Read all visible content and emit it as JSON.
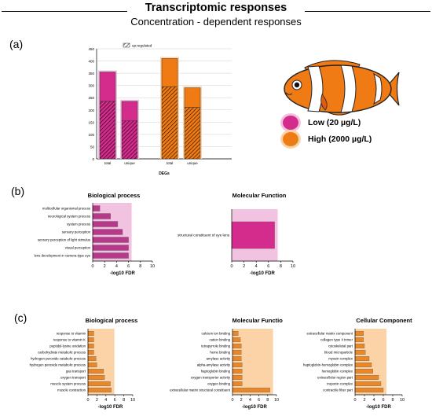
{
  "header": {
    "title": "Transcriptomic responses",
    "subtitle": "Concentration - dependent responses"
  },
  "panels": {
    "a": "(a)",
    "b": "(b)",
    "c": "(c)"
  },
  "legend": {
    "low": {
      "label": "Low (20 µg/L)",
      "color": "#d42c8c"
    },
    "high": {
      "label": "High (2000 µg/L)",
      "color": "#f07a14"
    }
  },
  "colors": {
    "pink": "#d42c8c",
    "pink_glow": "#f2c3e0",
    "orange": "#f07a14",
    "orange_glow": "#fbd3a6",
    "purple_bar": "#b53a8a",
    "orange_bar": "#e8882a"
  },
  "chart_data": [
    {
      "id": "degs",
      "type": "bar",
      "xlabel": "DEGs",
      "ylabel": "",
      "ylim": [
        0,
        450
      ],
      "yticks": [
        0,
        50,
        100,
        150,
        200,
        250,
        300,
        350,
        400,
        450
      ],
      "legend_entry": "up-regulated",
      "groups": [
        {
          "concentration": "low",
          "categories": [
            "total",
            "unique"
          ],
          "total": [
            355,
            235
          ],
          "up_regulated": [
            235,
            155
          ]
        },
        {
          "concentration": "high",
          "categories": [
            "total",
            "unique"
          ],
          "total": [
            410,
            290
          ],
          "up_regulated": [
            295,
            210
          ]
        }
      ]
    },
    {
      "id": "b-bp",
      "type": "bar",
      "orientation": "horizontal",
      "title": "Biological process",
      "xlabel": "-log10 FDR",
      "xlim": [
        0,
        10
      ],
      "xticks": [
        0,
        2,
        4,
        6,
        8,
        10
      ],
      "categories": [
        "multicellular organismal process",
        "neurological system process",
        "system process",
        "sensory perception",
        "sensory perception of light stimulus",
        "visual perception",
        "lens development in camera-type eye"
      ],
      "values": [
        1.2,
        3.0,
        4.2,
        5.0,
        6.0,
        6.0,
        6.0
      ]
    },
    {
      "id": "b-mf",
      "type": "bar",
      "orientation": "horizontal",
      "title": "Molecular Function",
      "xlabel": "-log10 FDR",
      "xlim": [
        0,
        10
      ],
      "xticks": [
        0,
        2,
        4,
        6,
        8,
        10
      ],
      "categories": [
        "structural constituent of eye lens"
      ],
      "values": [
        7.0
      ]
    },
    {
      "id": "c-bp",
      "type": "bar",
      "orientation": "horizontal",
      "title": "Biological process",
      "xlabel": "-log10 FDR",
      "xlim": [
        0,
        10
      ],
      "xticks": [
        0,
        2,
        4,
        6,
        8,
        10
      ],
      "categories": [
        "response to vitamin",
        "response to vitamin K",
        "peptidyl-lysine oxidation",
        "carbohydrate metabolic process",
        "hydrogen peroxide catabolic process",
        "hydrogen peroxide metabolic process",
        "gas transport",
        "oxygen transport",
        "muscle system process",
        "muscle contraction"
      ],
      "values": [
        1.3,
        1.3,
        1.3,
        1.3,
        1.8,
        2.0,
        3.5,
        3.7,
        5.0,
        5.2
      ]
    },
    {
      "id": "c-mf",
      "type": "bar",
      "orientation": "horizontal",
      "title": "Molecular Function",
      "xlabel": "-log10 FDR",
      "xlim": [
        0,
        10
      ],
      "xticks": [
        0,
        2,
        4,
        6,
        8,
        10
      ],
      "categories": [
        "calcium ion binding",
        "cation binding",
        "tetrapyrrole binding",
        "heme binding",
        "amylase activity",
        "alpha-amylase activity",
        "haptoglobin binding",
        "oxygen transporter activity",
        "oxygen binding",
        "extracellular matrix structural constituent"
      ],
      "values": [
        1.3,
        1.8,
        2.0,
        2.0,
        2.0,
        2.2,
        2.2,
        2.2,
        2.2,
        8.5
      ]
    },
    {
      "id": "c-cc",
      "type": "bar",
      "orientation": "horizontal",
      "title": "Cellular Component",
      "xlabel": "-log10 FDR",
      "xlim": [
        0,
        10
      ],
      "xticks": [
        0,
        2,
        4,
        6,
        8,
        10
      ],
      "categories": [
        "extracellular matrix component",
        "collagen type II trimer",
        "cytoskeletal part",
        "blood microparticle",
        "myosin complex",
        "haptoglobin-hemoglobin complex",
        "hemoglobin complex",
        "extracellular region part",
        "troponin complex",
        "contractile fiber part"
      ],
      "values": [
        1.8,
        1.8,
        2.0,
        2.2,
        3.0,
        3.5,
        3.8,
        5.0,
        5.5,
        6.0
      ]
    }
  ]
}
